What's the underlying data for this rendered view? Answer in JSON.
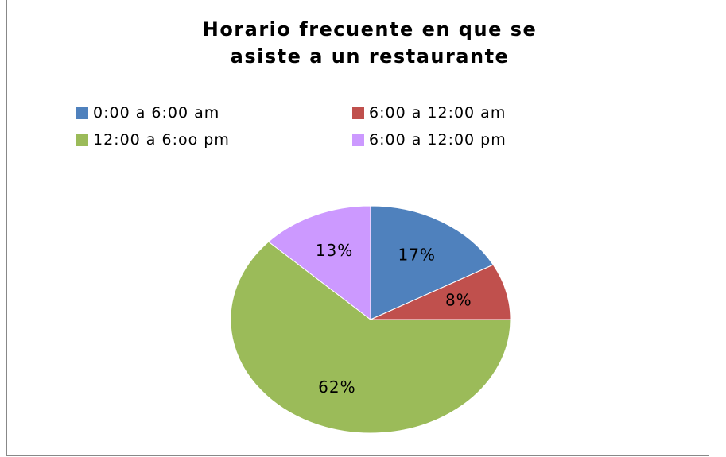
{
  "chart_data": {
    "type": "pie",
    "title": "Horario frecuente en que se asiste a un restaurante",
    "categories": [
      "0:00 a 6:00 am",
      "6:00 a 12:00 am",
      "12:00 a 6:oo pm",
      "6:00 a 12:00 pm"
    ],
    "values": [
      17,
      8,
      62,
      13
    ],
    "value_labels": [
      "17%",
      "8%",
      "62%",
      "13%"
    ],
    "colors": [
      "#4f81bd",
      "#c0504d",
      "#9bbb59",
      "#cc99ff"
    ],
    "legend": "top"
  }
}
